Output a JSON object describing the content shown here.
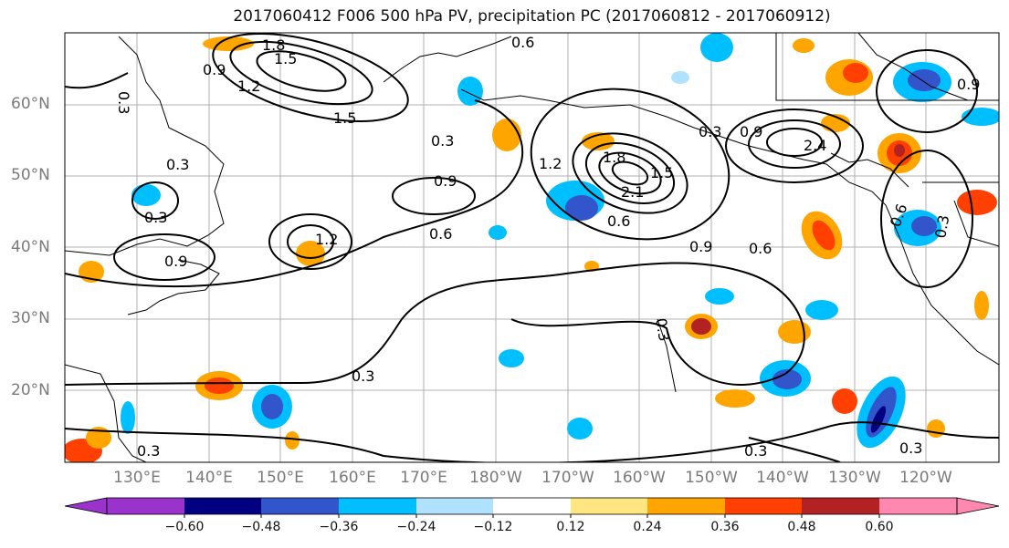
{
  "title": "2017060412 F006 500 hPa PV, precipitation PC (2017060812 - 2017060912)",
  "map": {
    "lat_labels": [
      "60°N",
      "50°N",
      "40°N",
      "30°N",
      "20°N"
    ],
    "lon_labels": [
      "130°E",
      "140°E",
      "150°E",
      "160°E",
      "170°E",
      "180°W",
      "170°W",
      "160°W",
      "150°W",
      "140°W",
      "130°W",
      "120°W"
    ],
    "contour_labels": [
      "0.3",
      "0.6",
      "0.9",
      "1.2",
      "1.5",
      "1.8",
      "2.1",
      "2.4"
    ],
    "colors": {
      "contour": "#000000",
      "coast": "#000000",
      "grid": "#b0b0b0"
    }
  },
  "colorbar": {
    "ticks": [
      "−0.60",
      "−0.48",
      "−0.36",
      "−0.24",
      "−0.12",
      "0.12",
      "0.24",
      "0.36",
      "0.48",
      "0.60"
    ],
    "colors": [
      "#9933cc",
      "#000080",
      "#3355cc",
      "#00bfff",
      "#b0e2ff",
      "#ffffff",
      "#ffe680",
      "#ffa500",
      "#ff4000",
      "#b22222",
      "#ff88b0"
    ]
  }
}
